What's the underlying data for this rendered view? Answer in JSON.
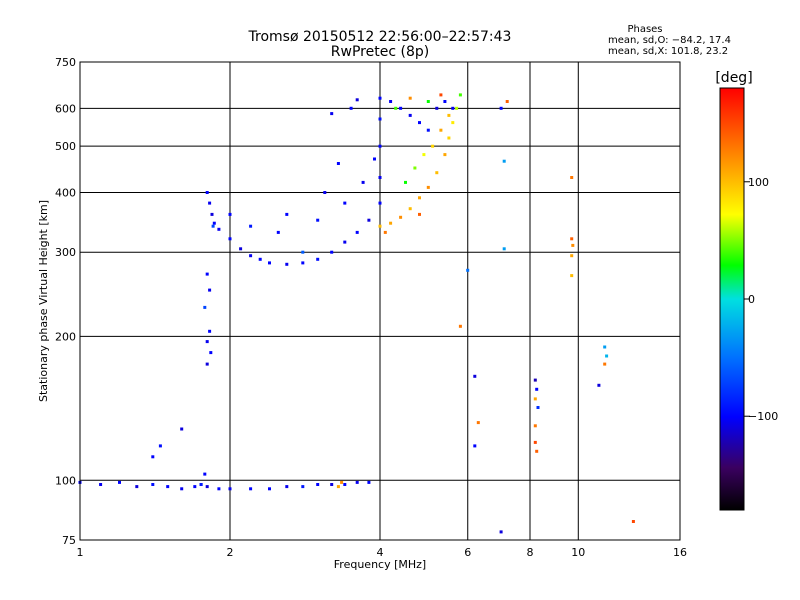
{
  "chart_data": {
    "type": "scatter",
    "title": "Tromsø 20150512 22:56:00–22:57:43",
    "subtitle": "RwPretec (8p)",
    "xlabel": "Frequency [MHz]",
    "ylabel": "Stationary phase Virtual Height [km]",
    "x_scale": "log2",
    "y_scale": "log",
    "xlim": [
      1,
      16
    ],
    "ylim": [
      75,
      750
    ],
    "x_ticks": [
      1,
      2,
      4,
      6,
      8,
      10,
      16
    ],
    "x_tick_labels": [
      "1",
      "2",
      "4",
      "6",
      "8",
      "10",
      "16"
    ],
    "y_ticks": [
      75,
      100,
      200,
      300,
      400,
      500,
      600,
      750
    ],
    "y_tick_labels": [
      "75",
      "100",
      "200",
      "300",
      "400",
      "500",
      "600",
      "750"
    ],
    "grid": true,
    "stats": {
      "heading": "Phases",
      "line_o": "mean, sd,O: −84.2, 17.4",
      "line_x": "mean, sd,X: 101.8, 23.2"
    },
    "colorbar": {
      "label": "[deg]",
      "range": [
        -180,
        180
      ],
      "tick_values": [
        100,
        0,
        -100
      ],
      "tick_labels": [
        "100",
        "0",
        "−100"
      ]
    },
    "series": [
      {
        "points": [
          [
            1.0,
            99,
            -100
          ],
          [
            1.1,
            98,
            -105
          ],
          [
            1.2,
            99,
            -100
          ],
          [
            1.3,
            97,
            -110
          ],
          [
            1.4,
            98,
            -95
          ],
          [
            1.5,
            97,
            -100
          ],
          [
            1.6,
            96,
            -105
          ],
          [
            1.7,
            97,
            -100
          ],
          [
            1.75,
            98,
            -95
          ],
          [
            1.8,
            97,
            -110
          ],
          [
            1.9,
            96,
            -100
          ],
          [
            2.0,
            96,
            -105
          ],
          [
            2.2,
            96,
            -100
          ],
          [
            2.4,
            96,
            -100
          ],
          [
            2.6,
            97,
            -105
          ],
          [
            2.8,
            97,
            -90
          ],
          [
            3.0,
            98,
            -100
          ],
          [
            3.2,
            98,
            -110
          ],
          [
            3.4,
            98,
            -100
          ],
          [
            3.6,
            99,
            -105
          ],
          [
            3.8,
            99,
            -100
          ],
          [
            3.3,
            97,
            110
          ],
          [
            3.35,
            99,
            120
          ]
        ]
      },
      {
        "points": [
          [
            1.4,
            112,
            -100
          ],
          [
            1.45,
            118,
            -95
          ],
          [
            1.6,
            128,
            -110
          ],
          [
            1.75,
            98,
            -90
          ],
          [
            1.78,
            103,
            -100
          ]
        ]
      },
      {
        "points": [
          [
            1.8,
            400,
            -100
          ],
          [
            1.82,
            380,
            -105
          ],
          [
            1.84,
            360,
            -110
          ],
          [
            1.86,
            345,
            -100
          ],
          [
            1.9,
            335,
            -105
          ],
          [
            2.0,
            320,
            -100
          ],
          [
            2.1,
            305,
            -110
          ],
          [
            2.2,
            295,
            -105
          ],
          [
            2.3,
            290,
            -100
          ],
          [
            2.4,
            285,
            -100
          ],
          [
            2.6,
            283,
            -105
          ],
          [
            2.8,
            285,
            -100
          ],
          [
            3.0,
            290,
            -95
          ],
          [
            3.2,
            300,
            -100
          ],
          [
            3.4,
            315,
            -105
          ],
          [
            3.6,
            330,
            -100
          ],
          [
            3.8,
            350,
            -110
          ],
          [
            4.0,
            380,
            -100
          ],
          [
            4.0,
            430,
            -105
          ],
          [
            4.0,
            500,
            -100
          ],
          [
            4.0,
            570,
            -95
          ],
          [
            4.0,
            630,
            -100
          ],
          [
            4.2,
            620,
            -105
          ],
          [
            4.4,
            600,
            -100
          ],
          [
            4.6,
            580,
            -105
          ],
          [
            4.8,
            560,
            -100
          ],
          [
            5.0,
            540,
            -95
          ],
          [
            5.2,
            600,
            -110
          ],
          [
            5.4,
            620,
            -100
          ],
          [
            5.6,
            600,
            -105
          ],
          [
            3.5,
            600,
            -100
          ],
          [
            3.2,
            585,
            -105
          ],
          [
            3.6,
            625,
            -110
          ],
          [
            2.8,
            300,
            -60
          ],
          [
            2.6,
            360,
            -100
          ],
          [
            3.0,
            350,
            -95
          ],
          [
            3.4,
            380,
            -100
          ],
          [
            3.7,
            420,
            -105
          ],
          [
            3.9,
            470,
            -100
          ],
          [
            2.2,
            340,
            -90
          ],
          [
            2.0,
            360,
            -100
          ],
          [
            1.85,
            340,
            -70
          ],
          [
            2.5,
            330,
            -100
          ],
          [
            3.1,
            400,
            -105
          ],
          [
            3.3,
            460,
            -100
          ]
        ]
      },
      {
        "points": [
          [
            1.8,
            270,
            -100
          ],
          [
            1.82,
            250,
            -105
          ],
          [
            1.78,
            230,
            -70
          ],
          [
            1.82,
            205,
            -100
          ],
          [
            1.8,
            195,
            -105
          ],
          [
            1.83,
            185,
            -100
          ],
          [
            1.8,
            175,
            -110
          ]
        ]
      },
      {
        "points": [
          [
            4.0,
            340,
            100
          ],
          [
            4.2,
            345,
            110
          ],
          [
            4.4,
            355,
            120
          ],
          [
            4.6,
            370,
            100
          ],
          [
            4.8,
            390,
            110
          ],
          [
            5.0,
            410,
            120
          ],
          [
            5.2,
            440,
            100
          ],
          [
            5.4,
            480,
            110
          ],
          [
            5.5,
            520,
            90
          ],
          [
            5.6,
            560,
            80
          ],
          [
            5.7,
            600,
            60
          ],
          [
            5.8,
            640,
            40
          ],
          [
            4.5,
            420,
            30
          ],
          [
            4.7,
            450,
            50
          ],
          [
            4.9,
            480,
            70
          ],
          [
            5.1,
            500,
            90
          ],
          [
            5.3,
            540,
            110
          ],
          [
            5.5,
            580,
            100
          ],
          [
            4.3,
            600,
            40
          ],
          [
            4.6,
            630,
            120
          ],
          [
            5.0,
            620,
            30
          ],
          [
            5.3,
            640,
            150
          ],
          [
            4.8,
            360,
            140
          ],
          [
            4.1,
            330,
            130
          ]
        ]
      },
      {
        "points": [
          [
            5.8,
            210,
            130
          ],
          [
            6.2,
            165,
            -110
          ],
          [
            6.3,
            132,
            130
          ],
          [
            6.2,
            118,
            -100
          ],
          [
            6.0,
            275,
            -50
          ],
          [
            7.0,
            600,
            -100
          ],
          [
            7.2,
            620,
            140
          ],
          [
            7.1,
            465,
            -30
          ],
          [
            7.1,
            305,
            -30
          ],
          [
            7.0,
            78,
            -110
          ],
          [
            8.2,
            162,
            -120
          ],
          [
            8.25,
            155,
            -100
          ],
          [
            8.2,
            148,
            110
          ],
          [
            8.3,
            142,
            -80
          ],
          [
            8.2,
            130,
            130
          ],
          [
            8.2,
            120,
            150
          ],
          [
            8.25,
            115,
            140
          ],
          [
            9.7,
            430,
            130
          ],
          [
            9.7,
            320,
            140
          ],
          [
            9.75,
            310,
            120
          ],
          [
            9.7,
            295,
            110
          ],
          [
            9.7,
            268,
            100
          ],
          [
            11.3,
            190,
            -30
          ],
          [
            11.4,
            182,
            -20
          ],
          [
            11.3,
            175,
            130
          ],
          [
            11.0,
            158,
            -110
          ],
          [
            12.9,
            82,
            150
          ]
        ]
      }
    ]
  }
}
